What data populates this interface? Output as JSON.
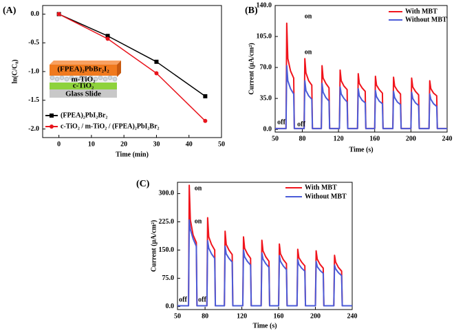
{
  "chart_data": [
    {
      "type": "line",
      "panel_label": "(A)",
      "x_label": "Time (min)",
      "y_label": "ln(C/C₀)",
      "xlim": [
        -5,
        50
      ],
      "xticks": [
        0,
        10,
        20,
        30,
        40,
        50
      ],
      "ylim": [
        -2.15,
        0.15
      ],
      "yticks": [
        {
          "value": 0,
          "label": "0.0"
        },
        -0.5,
        {
          "value": -1,
          "label": "-1.0"
        },
        -1.5,
        {
          "value": -2,
          "label": "-2.0"
        }
      ],
      "x": [
        0,
        15,
        30,
        45
      ],
      "series": [
        {
          "name": "(FPEA)₂PbI₂Br₂",
          "color": "#000000",
          "marker": "square",
          "values": [
            0,
            -0.38,
            -0.83,
            -1.43
          ]
        },
        {
          "name": "c-TiO₂ / m-TiO₂ / (FPEA)₂PbI₂Br₂",
          "color": "#e8141c",
          "marker": "circle",
          "values": [
            0,
            -0.43,
            -1.03,
            -1.86
          ]
        }
      ],
      "inset_labels": [
        "(FPEA)₂PbBr₂I₂",
        "m-TiO₂",
        "c-TiO₂",
        "Glass Slide"
      ]
    },
    {
      "type": "line",
      "panel_label": "(B)",
      "x_label": "Time (s)",
      "y_label": "Current (μA/cm²)",
      "xlim": [
        50,
        240
      ],
      "xticks": [
        50,
        80,
        120,
        160,
        200,
        240
      ],
      "ylim": [
        -3,
        140
      ],
      "yticks": [
        {
          "value": 0,
          "label": "0.0"
        },
        {
          "value": 35,
          "label": "35.0"
        },
        {
          "value": 70,
          "label": "70.0"
        },
        {
          "value": 105,
          "label": "105.0"
        },
        {
          "value": 140,
          "label": "140.0"
        }
      ],
      "x": [
        50,
        62,
        62.8,
        64,
        67,
        70.5,
        71.2,
        82,
        82.8,
        84,
        87,
        90.5,
        91.2,
        101,
        101.8,
        103,
        106,
        109.5,
        110.2,
        121,
        121.8,
        123,
        126,
        129.5,
        130.2,
        141,
        141.8,
        143,
        146,
        149.5,
        150.2,
        160,
        160.8,
        162,
        165,
        168.5,
        169.2,
        180,
        180.8,
        182,
        185,
        188.5,
        189.2,
        200,
        200.8,
        202,
        205,
        208.5,
        209.2,
        220,
        220.8,
        222,
        225,
        228.5,
        229.2,
        240
      ],
      "series": [
        {
          "name": "With MBT",
          "color": "#f0141c",
          "values": [
            1,
            1,
            120,
            80,
            66,
            58,
            1,
            1,
            80,
            64,
            55,
            50,
            1,
            1,
            72,
            58,
            52,
            47,
            1,
            1,
            67,
            55,
            49,
            45,
            1,
            1,
            63,
            52,
            47,
            43,
            1,
            1,
            60,
            50,
            45,
            41,
            1,
            1,
            59,
            49,
            44,
            40,
            1,
            1,
            58,
            48,
            43,
            39,
            1,
            1,
            55,
            46,
            41,
            38,
            1,
            1
          ]
        },
        {
          "name": "Without MBT",
          "color": "#4a5bd8",
          "values": [
            1,
            1,
            72,
            55,
            46,
            40,
            1,
            1,
            55,
            44,
            38,
            34,
            1,
            1,
            52,
            42,
            36,
            32,
            1,
            1,
            48,
            40,
            35,
            31,
            1,
            1,
            46,
            38,
            33,
            30,
            1,
            1,
            44,
            37,
            32,
            29,
            1,
            1,
            43,
            36,
            31,
            28,
            1,
            1,
            42,
            35,
            30,
            27,
            1,
            1,
            40,
            34,
            29,
            26,
            1,
            1
          ]
        }
      ],
      "annotations": [
        "on",
        "on",
        "off",
        "off"
      ]
    },
    {
      "type": "line",
      "panel_label": "(C)",
      "x_label": "Time (s)",
      "y_label": "Current (μA/cm²)",
      "xlim": [
        50,
        240
      ],
      "xticks": [
        50,
        80,
        120,
        160,
        200,
        240
      ],
      "ylim": [
        -8,
        330
      ],
      "yticks": [
        {
          "value": 0,
          "label": "0.0"
        },
        {
          "value": 75,
          "label": "75.0"
        },
        {
          "value": 150,
          "label": "150.0"
        },
        {
          "value": 225,
          "label": "225.0"
        },
        {
          "value": 300,
          "label": "300.0"
        }
      ],
      "x": [
        50,
        62,
        62.8,
        64,
        67,
        70.5,
        71.2,
        82,
        82.8,
        84,
        87,
        90.5,
        91.2,
        101,
        101.8,
        103,
        106,
        109.5,
        110.2,
        121,
        121.8,
        123,
        126,
        129.5,
        130.2,
        141,
        141.8,
        143,
        146,
        149.5,
        150.2,
        160,
        160.8,
        162,
        165,
        168.5,
        169.2,
        180,
        180.8,
        182,
        185,
        188.5,
        189.2,
        200,
        200.8,
        202,
        205,
        208.5,
        209.2,
        220,
        220.8,
        222,
        225,
        228.5,
        229.2,
        240
      ],
      "series": [
        {
          "name": "With MBT",
          "color": "#f0141c",
          "values": [
            2,
            2,
            322,
            230,
            190,
            170,
            2,
            2,
            236,
            185,
            165,
            150,
            2,
            2,
            200,
            165,
            150,
            138,
            2,
            2,
            185,
            155,
            140,
            128,
            2,
            2,
            176,
            148,
            132,
            120,
            2,
            2,
            166,
            140,
            125,
            114,
            2,
            2,
            152,
            130,
            118,
            108,
            2,
            2,
            148,
            126,
            112,
            102,
            2,
            2,
            136,
            118,
            104,
            94,
            2,
            2
          ]
        },
        {
          "name": "Without MBT",
          "color": "#4a5bd8",
          "values": [
            2,
            2,
            230,
            205,
            180,
            160,
            2,
            2,
            175,
            155,
            140,
            128,
            2,
            2,
            160,
            140,
            128,
            118,
            2,
            2,
            150,
            132,
            120,
            110,
            2,
            2,
            142,
            126,
            114,
            104,
            2,
            2,
            135,
            120,
            108,
            98,
            2,
            2,
            125,
            112,
            102,
            94,
            2,
            2,
            120,
            106,
            96,
            88,
            2,
            2,
            110,
            100,
            90,
            82,
            2,
            2
          ]
        }
      ],
      "annotations": [
        "on",
        "on",
        "off",
        "off"
      ]
    }
  ]
}
